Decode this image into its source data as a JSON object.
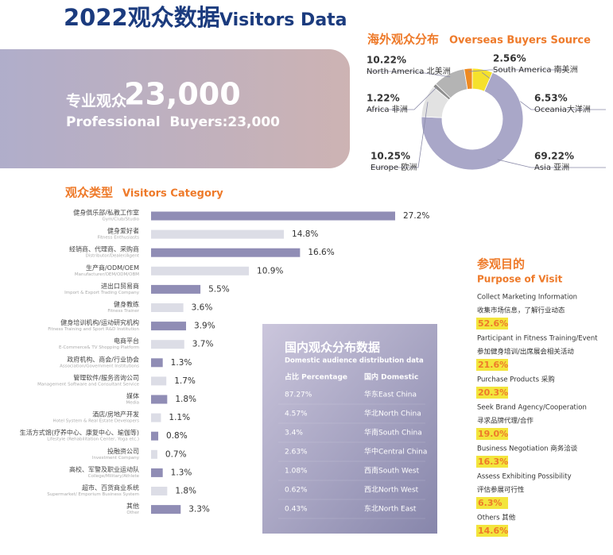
{
  "header": {
    "title": "2022观众数据",
    "subtitle": "Visitors Data"
  },
  "hero": {
    "label": "专业观众",
    "number": "23,000",
    "caption": "Professional  Buyers:23,000"
  },
  "chart_data": [
    {
      "type": "pie",
      "title": "海外观众分布",
      "subtitle": "Overseas Buyers Source",
      "categories": [
        "Oceania大洋洲",
        "Asia 亚洲",
        "Europe 欧洲",
        "Africa 非洲",
        "North America 北美洲",
        "South America 南美洲"
      ],
      "values": [
        6.53,
        69.22,
        10.25,
        1.22,
        10.22,
        2.56
      ],
      "value_labels": [
        "6.53%",
        "69.22%",
        "10.25%",
        "1.22%",
        "10.22%",
        "2.56%"
      ],
      "colors": [
        "#f5e12c",
        "#a9a7c8",
        "#e2e2e2",
        "#8e8e8e",
        "#b4b4b4",
        "#ee8a22"
      ]
    },
    {
      "type": "bar",
      "title": "观众类型",
      "subtitle": "Visitors Category",
      "categories": [
        "健身俱乐部/私教工作室",
        "健身爱好者",
        "经销商、代理商、采购商",
        "生产商/ODM/OEM",
        "进出口贸易商",
        "健身教练",
        "健身培训机构/运动研究机构",
        "电商平台",
        "政府机构、商会/行业协会",
        "管理软件/服务咨询公司",
        "媒体",
        "酒店/房地产开发",
        "生活方式馆(疗养中心、康复中心、瑜伽等)",
        "投融资公司",
        "高校、军警及职业运动队",
        "超市、百货商业系统",
        "其他"
      ],
      "category_subtitles": [
        "Gym/Club/Studio",
        "Fitness Enthusiasts",
        "Distributor/Dealer/Agent",
        "Manufacturer/OEM/ODM/OBM",
        "Import & Export Trading Company",
        "Fitness Trainer",
        "Fitness Training and Sport R&D Institution",
        "E-Commerce& TV Shopping Platform",
        "Association/Government Institutions",
        "Management Software and Consultant Service",
        "Media",
        "Hotel System & Real Estate Developers",
        "Lifestyle (Rehabilitation Center, Yoga etc.)",
        "Investment Company",
        "College/Military/Athlete",
        "Supermarket/ Emporium Business System",
        "Other"
      ],
      "values": [
        27.2,
        14.8,
        16.6,
        10.9,
        5.5,
        3.6,
        3.9,
        3.7,
        1.3,
        1.7,
        1.8,
        1.1,
        0.8,
        0.7,
        1.3,
        1.8,
        3.3
      ],
      "value_labels": [
        "27.2%",
        "14.8%",
        "16.6%",
        "10.9%",
        "5.5%",
        "3.6%",
        "3.9%",
        "3.7%",
        "1.3%",
        "1.7%",
        "1.8%",
        "1.1%",
        "0.8%",
        "0.7%",
        "1.3%",
        "1.8%",
        "3.3%"
      ],
      "colors": [
        "#908db5",
        "#dcdde6"
      ]
    }
  ],
  "purpose": {
    "title": "参观目的",
    "subtitle": "Purpose of Visit",
    "items": [
      {
        "lines": [
          "Collect Marketing Information",
          "收集市场信息，了解行业动态"
        ],
        "value": "52.6%"
      },
      {
        "lines": [
          "Participant in Fitness Training/Event",
          "参加健身培训/出席展会相关活动"
        ],
        "value": "21.6%"
      },
      {
        "lines": [
          "Purchase Products 采购"
        ],
        "value": "20.3%"
      },
      {
        "lines": [
          "Seek Brand Agency/Cooperation",
          "寻求品牌代理/合作"
        ],
        "value": "19.0%"
      },
      {
        "lines": [
          "Business Negotiation 商务洽谈"
        ],
        "value": "16.3%"
      },
      {
        "lines": [
          "Assess Exhibiting Possibility",
          "评估参展可行性"
        ],
        "value": "6.3%"
      },
      {
        "lines": [
          "Others 其他"
        ],
        "value": "14.6%"
      }
    ]
  },
  "domestic": {
    "title": "国内观众分布数据",
    "subtitle": "Domestic audience distribution data",
    "headers": [
      "占比 Percentage",
      "国内 Domestic"
    ],
    "rows": [
      [
        "87.27%",
        "华东East China"
      ],
      [
        "4.57%",
        "华北North China"
      ],
      [
        "3.4%",
        "华南South China"
      ],
      [
        "2.63%",
        "华中Central China"
      ],
      [
        "1.08%",
        "西南South West"
      ],
      [
        "0.62%",
        "西北North West"
      ],
      [
        "0.43%",
        "东北North East"
      ]
    ]
  }
}
